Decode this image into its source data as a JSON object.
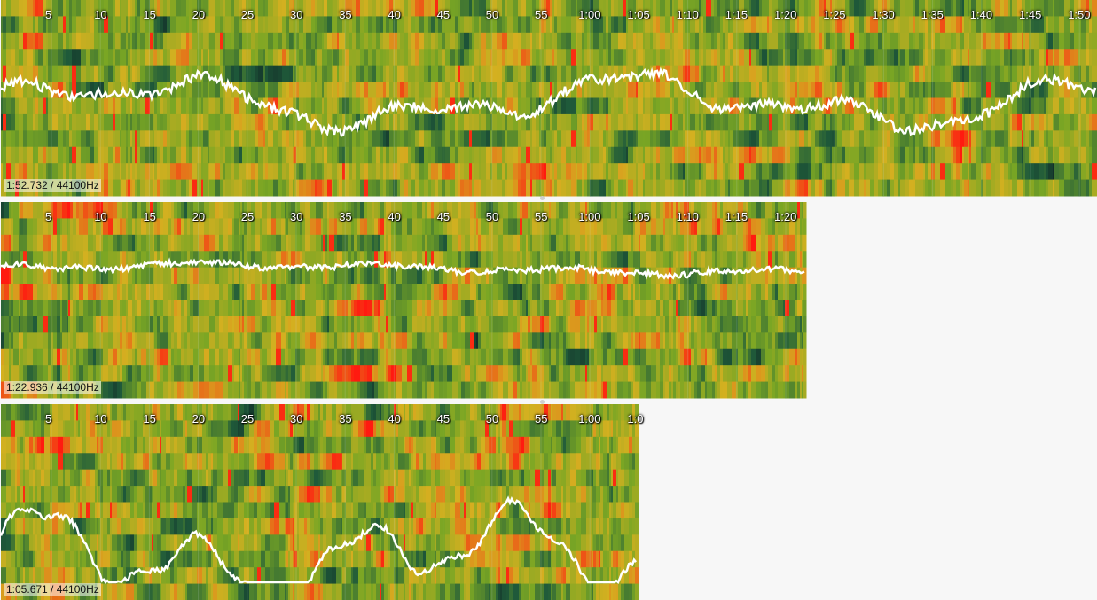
{
  "colors": {
    "background": "#f7f7f7",
    "cold": "#0c1a20",
    "mid": "#1f5a3a",
    "warm": "#7aa624",
    "hot": "#d4b020",
    "peak": "#ff1a10",
    "curve": "#ffffff"
  },
  "tracks": [
    {
      "info": "1:52.732 / 44100Hz",
      "ticks": [
        "5",
        "10",
        "15",
        "20",
        "25",
        "30",
        "35",
        "40",
        "45",
        "50",
        "55",
        "1:00",
        "1:05",
        "1:10",
        "1:15",
        "1:20",
        "1:25",
        "1:30",
        "1:35",
        "1:40",
        "1:45",
        "1:50"
      ]
    },
    {
      "info": "1:22.936 / 44100Hz",
      "ticks": [
        "5",
        "10",
        "15",
        "20",
        "25",
        "30",
        "35",
        "40",
        "45",
        "50",
        "55",
        "1:00",
        "1:05",
        "1:10",
        "1:15",
        "1:20"
      ]
    },
    {
      "info": "1:05.671 / 44100Hz",
      "ticks": [
        "5",
        "10",
        "15",
        "20",
        "25",
        "30",
        "35",
        "40",
        "45",
        "50",
        "55",
        "1:00",
        "1:0"
      ]
    }
  ]
}
